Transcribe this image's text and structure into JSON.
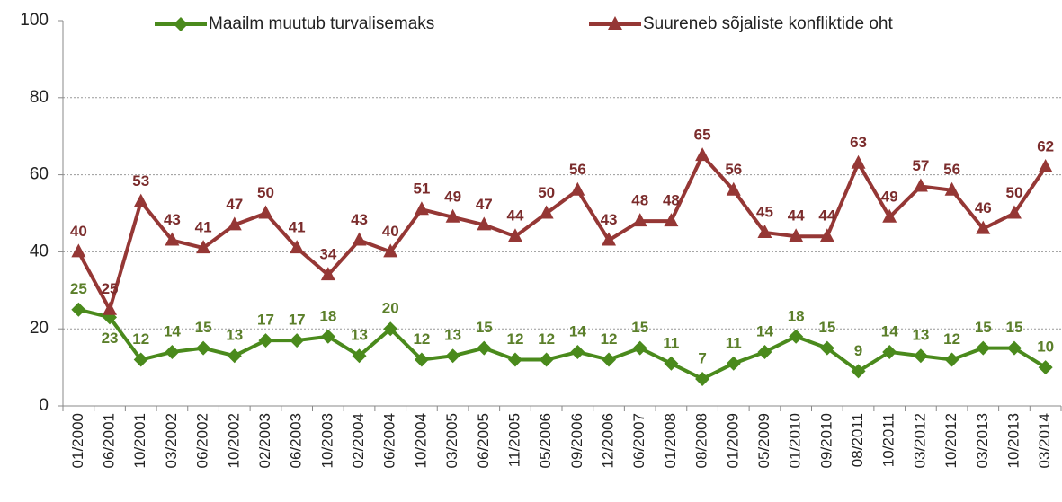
{
  "chart_data": {
    "type": "line",
    "categories": [
      "01/2000",
      "06/2001",
      "10/2001",
      "03/2002",
      "06/2002",
      "10/2002",
      "02/2003",
      "06/2003",
      "10/2003",
      "02/2004",
      "06/2004",
      "10/2004",
      "03/2005",
      "06/2005",
      "11/2005",
      "05/2006",
      "09/2006",
      "12/2006",
      "06/2007",
      "01/2008",
      "08/2008",
      "01/2009",
      "05/2009",
      "01/2010",
      "09/2010",
      "08/2011",
      "10/2011",
      "03/2012",
      "10/2012",
      "03/2013",
      "10/2013",
      "03/2014"
    ],
    "series": [
      {
        "name": "Maailm muutub turvalisemaks",
        "color": "#4a8a1c",
        "label_color": "#5b7f2a",
        "marker": "diamond",
        "values": [
          25,
          23,
          12,
          14,
          15,
          13,
          17,
          17,
          18,
          13,
          20,
          12,
          13,
          15,
          12,
          12,
          14,
          12,
          15,
          11,
          7,
          11,
          14,
          18,
          15,
          9,
          14,
          13,
          12,
          15,
          15,
          10
        ]
      },
      {
        "name": "Suureneb sõjaliste konfliktide oht",
        "color": "#953735",
        "label_color": "#7b2c2c",
        "marker": "triangle",
        "values": [
          40,
          25,
          53,
          43,
          41,
          47,
          50,
          41,
          34,
          43,
          40,
          51,
          49,
          47,
          44,
          50,
          56,
          43,
          48,
          48,
          65,
          56,
          45,
          44,
          44,
          63,
          49,
          57,
          56,
          46,
          50,
          62
        ]
      }
    ],
    "ylim": [
      0,
      100
    ],
    "yticks": [
      0,
      20,
      40,
      60,
      80,
      100
    ],
    "grid": true,
    "legend": "top"
  }
}
